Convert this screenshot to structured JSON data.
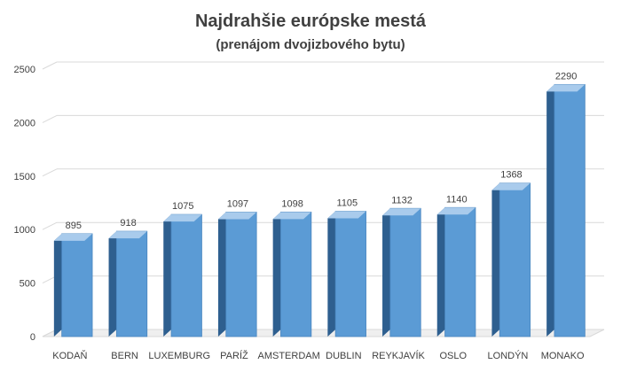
{
  "chart_data": {
    "type": "bar",
    "title": "Najdrahšie európske mestá",
    "subtitle": "(prenájom dvojizbového bytu)",
    "xlabel": "",
    "ylabel": "",
    "categories": [
      "KODAŇ",
      "BERN",
      "LUXEMBURG",
      "PARÍŽ",
      "AMSTERDAM",
      "DUBLIN",
      "REYKJAVÍK",
      "OSLO",
      "LONDÝN",
      "MONAKO"
    ],
    "values": [
      895,
      918,
      1075,
      1097,
      1098,
      1105,
      1132,
      1140,
      1368,
      2290
    ],
    "data_labels": [
      "895",
      "918",
      "1075",
      "1097",
      "1098",
      "1105",
      "1132",
      "1140",
      "1368",
      "2290"
    ],
    "ylim": [
      0,
      2500
    ],
    "yticks": [
      0,
      500,
      1000,
      1500,
      2000,
      2500
    ],
    "grid": true,
    "legend": "none",
    "style": "3d-columns"
  },
  "colors": {
    "bar_front": "#5b9bd5",
    "bar_side": "#2e5f8f",
    "bar_top": "#a9cbec",
    "grid": "#d9d9d9",
    "text": "#404040"
  }
}
